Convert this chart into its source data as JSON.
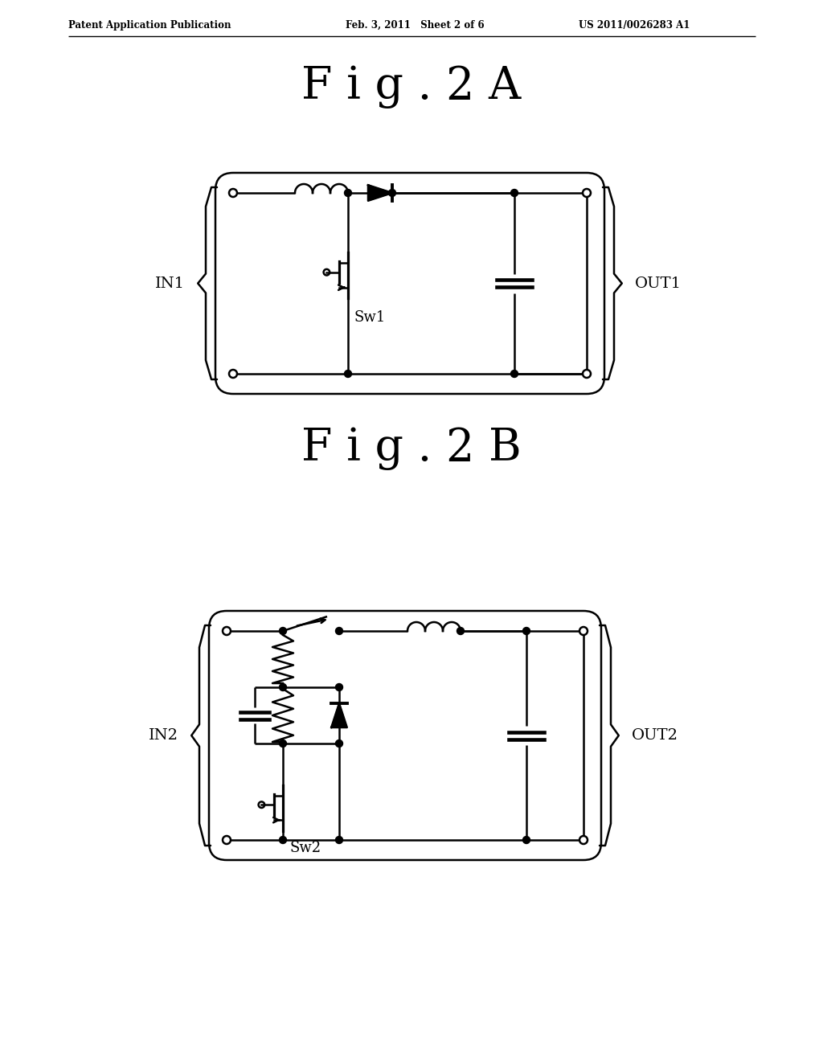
{
  "title_top_left": "Patent Application Publication",
  "title_top_mid": "Feb. 3, 2011   Sheet 2 of 6",
  "title_top_right": "US 2011/0026283 A1",
  "fig2a_label": "F i g . 2 A",
  "fig2b_label": "F i g . 2 B",
  "label_in1": "IN1",
  "label_out1": "OUT1",
  "label_sw1": "Sw1",
  "label_in2": "IN2",
  "label_out2": "OUT2",
  "label_sw2": "Sw2",
  "bg_color": "#ffffff",
  "line_color": "#000000",
  "lw": 1.8
}
